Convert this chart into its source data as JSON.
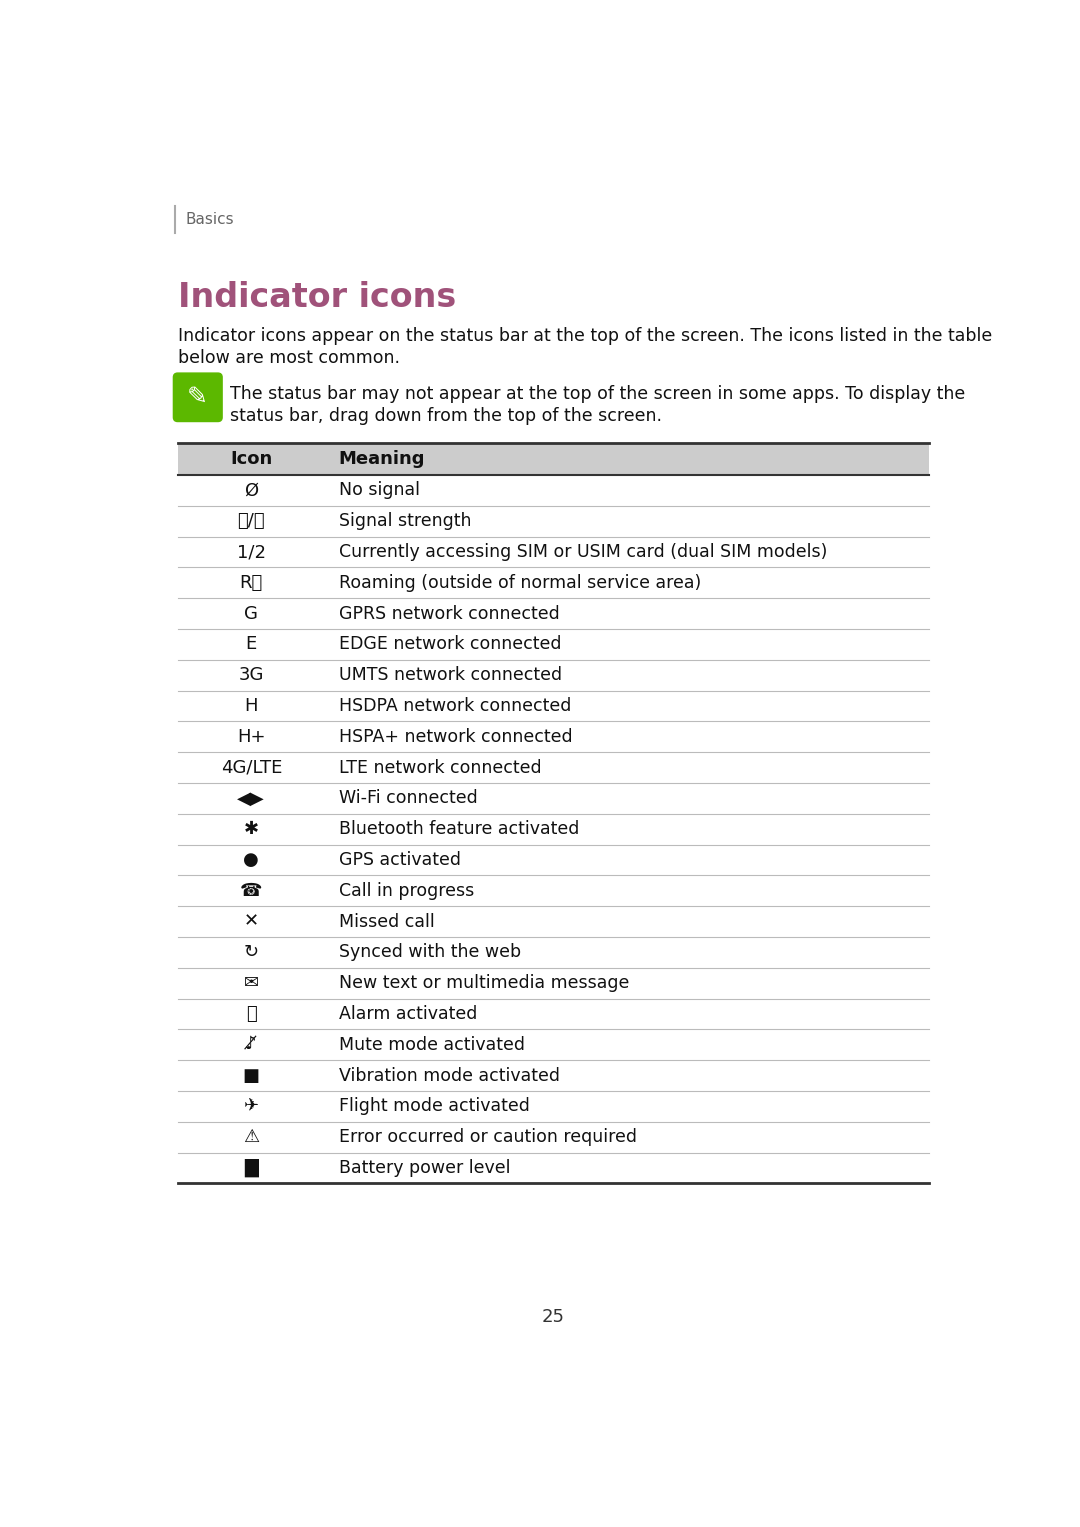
{
  "page_background": "#ffffff",
  "page_number": "25",
  "header_text": "Basics",
  "title": "Indicator icons",
  "title_color": "#a0527a",
  "intro_text": "Indicator icons appear on the status bar at the top of the screen. The icons listed in the table below are most common.",
  "note_icon_color": "#5cb800",
  "note_text": "The status bar may not appear at the top of the screen in some apps. To display the status bar, drag down from the top of the screen.",
  "table_header_bg": "#cccccc",
  "table_border_top_color": "#333333",
  "table_border_row_color": "#bbbbbb",
  "col_icon_header": "Icon",
  "col_meaning_header": "Meaning",
  "meanings": [
    "No signal",
    "Signal strength",
    "Currently accessing SIM or USIM card (dual SIM models)",
    "Roaming (outside of normal service area)",
    "GPRS network connected",
    "EDGE network connected",
    "UMTS network connected",
    "HSDPA network connected",
    "HSPA+ network connected",
    "LTE network connected",
    "Wi-Fi connected",
    "Bluetooth feature activated",
    "GPS activated",
    "Call in progress",
    "Missed call",
    "Synced with the web",
    "New text or multimedia message",
    "Alarm activated",
    "Mute mode activated",
    "Vibration mode activated",
    "Flight mode activated",
    "Error occurred or caution required",
    "Battery power level"
  ]
}
